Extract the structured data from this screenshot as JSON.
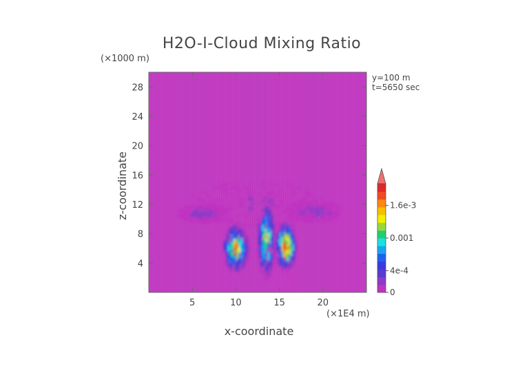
{
  "chart_data": {
    "type": "heatmap",
    "title": "H2O-I-Cloud Mixing Ratio",
    "xlabel": "x-coordinate",
    "ylabel": "z-coordinate",
    "x_unit": "(×1E4 m)",
    "y_unit": "(×1000 m)",
    "annotations": [
      "y=100 m",
      "t=5650 sec"
    ],
    "x_ticks": [
      5,
      10,
      15,
      20
    ],
    "y_ticks": [
      4,
      8,
      12,
      16,
      20,
      24,
      28
    ],
    "xlim": [
      0,
      25
    ],
    "ylim": [
      0,
      30
    ],
    "grid": false,
    "background_value": 0,
    "colorbar": {
      "position": "right",
      "tick_labels": [
        "1.6e-3",
        "0.001",
        "4e-4",
        "0"
      ],
      "tick_values": [
        0.0016,
        0.001,
        0.0004,
        0
      ],
      "range": [
        0,
        0.002
      ],
      "extend": "max",
      "colors": [
        "#c033c0",
        "#8a3cc8",
        "#5a3ad0",
        "#3a3ae0",
        "#2060f0",
        "#16a6f0",
        "#1ce0e0",
        "#20d070",
        "#9ad83a",
        "#f0f000",
        "#f8c000",
        "#f88a10",
        "#f04a20",
        "#e02828"
      ],
      "extend_color": "#f07070"
    },
    "features": [
      {
        "name": "anvil-left",
        "x": [
          3.5,
          9
        ],
        "z": [
          9.5,
          12
        ],
        "level": 0.0002
      },
      {
        "name": "anvil-right",
        "x": [
          16,
          22
        ],
        "z": [
          9.5,
          12.5
        ],
        "level": 0.0002
      },
      {
        "name": "upper-cloud",
        "x": [
          5,
          20
        ],
        "z": [
          9,
          15
        ],
        "level": 0.0001
      },
      {
        "name": "core-left",
        "x": [
          8.5,
          11.5
        ],
        "z": [
          3,
          9
        ],
        "level": 0.0012
      },
      {
        "name": "core-center",
        "x": [
          12.5,
          14.5
        ],
        "z": [
          2,
          12
        ],
        "level": 0.0011
      },
      {
        "name": "core-right",
        "x": [
          14.5,
          17
        ],
        "z": [
          3,
          9.5
        ],
        "level": 0.0014
      }
    ]
  }
}
